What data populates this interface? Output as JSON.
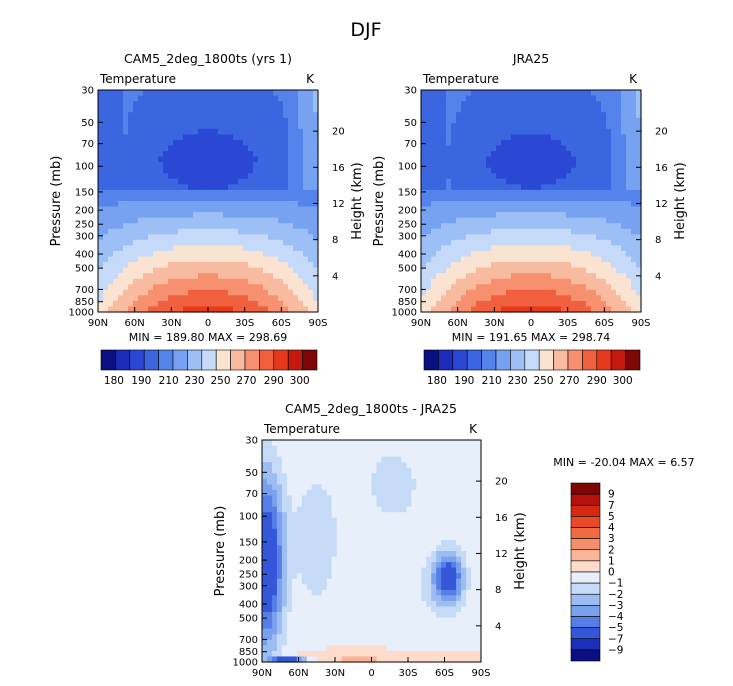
{
  "page": {
    "title": "DJF"
  },
  "chart_data": [
    {
      "type": "heatmap",
      "title": "CAM5_2deg_1800ts (yrs 1)",
      "variable": "Temperature",
      "units": "K",
      "xlabel": "",
      "ylabel": "Pressure (mb)",
      "y2label": "Height (km)",
      "x_ticks": [
        "90N",
        "60N",
        "30N",
        "0",
        "30S",
        "60S",
        "90S"
      ],
      "y_ticks": [
        1000,
        850,
        700,
        500,
        400,
        300,
        250,
        200,
        150,
        100,
        70,
        50,
        30
      ],
      "y2_ticks": [
        4,
        8,
        12,
        16,
        20
      ],
      "stats": "MIN = 189.80   MAX = 298.69",
      "colorbar_levels": [
        180,
        190,
        200,
        210,
        220,
        230,
        240,
        250,
        260,
        270,
        280,
        290,
        300
      ],
      "colorbar_labels": [
        "180",
        "190",
        "210",
        "230",
        "250",
        "270",
        "290",
        "300"
      ],
      "colorbar_colors": [
        "#0a0f82",
        "#1c2bb8",
        "#2a48d4",
        "#3b66e0",
        "#5583ec",
        "#77a2f2",
        "#9cbff6",
        "#c4daf8",
        "#fbe3d2",
        "#f9bba0",
        "#f6906f",
        "#f0603e",
        "#e6391b",
        "#c4190c",
        "#7d0606"
      ]
    },
    {
      "type": "heatmap",
      "title": "JRA25",
      "variable": "Temperature",
      "units": "K",
      "xlabel": "",
      "ylabel": "Pressure (mb)",
      "y2label": "Height (km)",
      "x_ticks": [
        "90N",
        "60N",
        "30N",
        "0",
        "30S",
        "60S",
        "90S"
      ],
      "y_ticks": [
        1000,
        850,
        700,
        500,
        400,
        300,
        250,
        200,
        150,
        100,
        70,
        50,
        30
      ],
      "y2_ticks": [
        4,
        8,
        12,
        16,
        20
      ],
      "stats": "MIN = 191.65   MAX = 298.74",
      "colorbar_levels": [
        180,
        190,
        200,
        210,
        220,
        230,
        240,
        250,
        260,
        270,
        280,
        290,
        300
      ],
      "colorbar_labels": [
        "180",
        "190",
        "210",
        "230",
        "250",
        "270",
        "290",
        "300"
      ],
      "colorbar_colors": [
        "#0a0f82",
        "#1c2bb8",
        "#2a48d4",
        "#3b66e0",
        "#5583ec",
        "#77a2f2",
        "#9cbff6",
        "#c4daf8",
        "#fbe3d2",
        "#f9bba0",
        "#f6906f",
        "#f0603e",
        "#e6391b",
        "#c4190c",
        "#7d0606"
      ]
    },
    {
      "type": "heatmap",
      "title": "CAM5_2deg_1800ts - JRA25",
      "variable": "Temperature",
      "units": "K",
      "xlabel": "",
      "ylabel": "Pressure (mb)",
      "y2label": "Height (km)",
      "x_ticks": [
        "90N",
        "60N",
        "30N",
        "0",
        "30S",
        "60S",
        "90S"
      ],
      "y_ticks": [
        1000,
        850,
        700,
        500,
        400,
        300,
        250,
        200,
        150,
        100,
        70,
        50,
        30
      ],
      "y2_ticks": [
        4,
        8,
        12,
        16,
        20
      ],
      "stats": "MIN = -20.04   MAX =    6.57",
      "colorbar_levels": [
        -9,
        -7,
        -5,
        -4,
        -3,
        -2,
        -1,
        0,
        1,
        2,
        3,
        4,
        5,
        7,
        9
      ],
      "colorbar_labels": [
        "9",
        "7",
        "5",
        "4",
        "3",
        "2",
        "1",
        "0",
        "−1",
        "−2",
        "−3",
        "−4",
        "−5",
        "−7",
        "−9"
      ],
      "colorbar_colors": [
        "#7d0606",
        "#b31109",
        "#d8280f",
        "#e84a25",
        "#f06a42",
        "#f58f6b",
        "#f9b597",
        "#fddccb",
        "#e6effa",
        "#c5daf6",
        "#9dbdf2",
        "#7aa1ed",
        "#557fe6",
        "#3556d8",
        "#1b2fb8",
        "#0a0f82"
      ]
    }
  ]
}
